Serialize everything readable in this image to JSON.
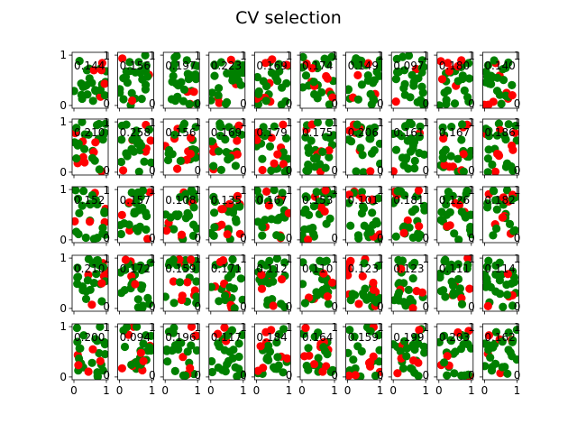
{
  "figure": {
    "title": "CV selection"
  },
  "colors": {
    "positive": "#008000",
    "negative": "#ff0000"
  },
  "chart_data": {
    "type": "scatter",
    "title": "CV selection",
    "grid": false,
    "rows": 5,
    "cols": 10,
    "xlim": [
      0,
      1
    ],
    "ylim": [
      0,
      1
    ],
    "left_ticks": [
      "0",
      "1"
    ],
    "bottom_ticks": [
      "0",
      "1"
    ],
    "right_tick_labels": [
      "0",
      "1"
    ],
    "scores": [
      [
        "0.144",
        "0.156",
        "0.197",
        "0.223",
        "0.169",
        "0.174",
        "0.149",
        "0.097",
        "0.180",
        "0.140"
      ],
      [
        "0.210",
        "0.258",
        "0.156",
        "0.169",
        "0.179",
        "0.175",
        "0.206",
        "0.161",
        "0.167",
        "0.186"
      ],
      [
        "0.152",
        "0.157",
        "0.108",
        "0.135",
        "0.167",
        "0.153",
        "0.101",
        "0.181",
        "0.126",
        "0.182"
      ],
      [
        "0.210",
        "0.172",
        "0.159",
        "0.171",
        "0.112",
        "0.110",
        "0.123",
        "0.123",
        "0.111",
        "0.114"
      ],
      [
        "0.200",
        "0.094",
        "0.196",
        "0.117",
        "0.184",
        "0.164",
        "0.159",
        "0.199",
        "0.203",
        "0.162"
      ]
    ]
  }
}
